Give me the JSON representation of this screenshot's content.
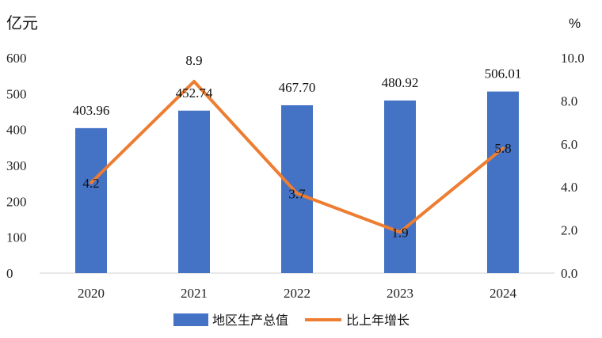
{
  "chart_data": {
    "type": "bar",
    "categories": [
      "2020",
      "2021",
      "2022",
      "2023",
      "2024"
    ],
    "series": [
      {
        "name": "地区生产总值",
        "type": "bar",
        "axis": "left",
        "values": [
          403.96,
          452.74,
          467.7,
          480.92,
          506.01
        ],
        "labels": [
          "403.96",
          "452.74",
          "467.70",
          "480.92",
          "506.01"
        ],
        "color": "#4472C4"
      },
      {
        "name": "比上年增长",
        "type": "line",
        "axis": "right",
        "values": [
          4.2,
          8.9,
          3.7,
          1.9,
          5.8
        ],
        "labels": [
          "4.2",
          "8.9",
          "3.7",
          "1.9",
          "5.8"
        ],
        "color": "#ED7D31"
      }
    ],
    "y_left": {
      "unit": "亿元",
      "range": [
        0,
        600
      ],
      "ticks": [
        "0",
        "100",
        "200",
        "300",
        "400",
        "500",
        "600"
      ]
    },
    "y_right": {
      "unit": "%",
      "range": [
        0,
        10
      ],
      "ticks": [
        "0.0",
        "2.0",
        "4.0",
        "6.0",
        "8.0",
        "10.0"
      ]
    },
    "grid": false,
    "legend": "bottom"
  }
}
